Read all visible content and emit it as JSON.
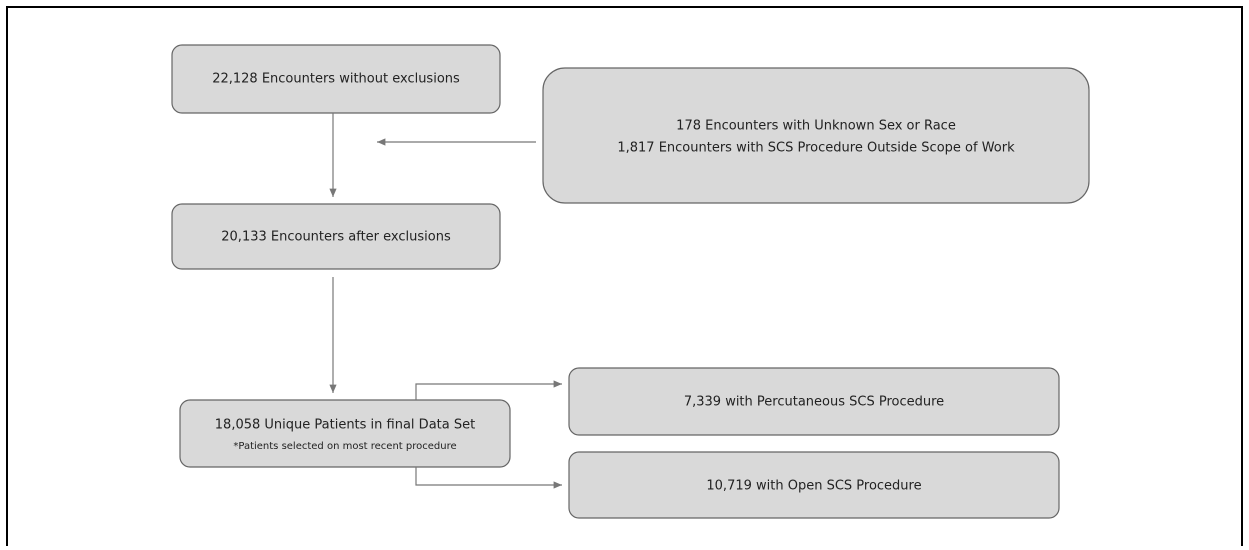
{
  "nodes": [
    {
      "label": "22,128 Encounters without exclusions"
    },
    {
      "label": "178 Encounters with Unknown Sex or Race",
      "label2": "1,817 Encounters with SCS Procedure Outside Scope of Work"
    },
    {
      "label": "20,133 Encounters after exclusions"
    },
    {
      "label": "18,058 Unique Patients in final Data Set",
      "note": "*Patients selected on most recent procedure"
    },
    {
      "label": "7,339 with Percutaneous SCS Procedure"
    },
    {
      "label": "10,719 with Open SCS Procedure"
    }
  ]
}
